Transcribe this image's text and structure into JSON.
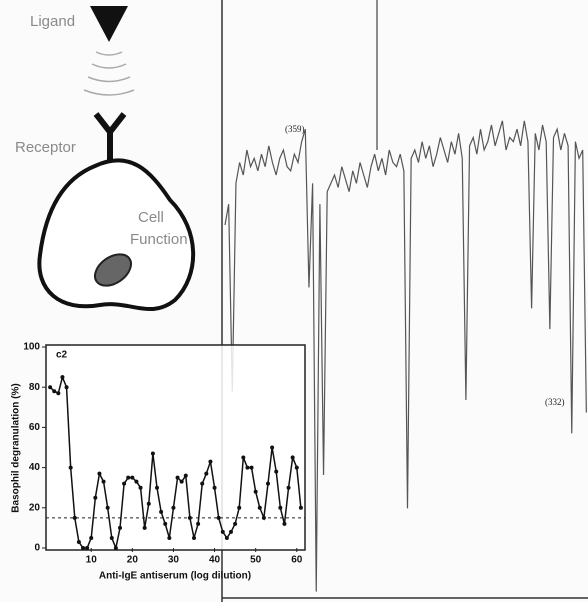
{
  "diagram": {
    "ligand": "Ligand",
    "receptor": "Receptor",
    "cell_function": [
      "Cell",
      "Function"
    ]
  },
  "chart_data": [
    {
      "type": "line",
      "panel_label": "c2",
      "x_label": "Anti-IgE antiserum (log dilution)",
      "y_label": "Basophil degranulation (%)",
      "x": [
        0,
        1,
        2,
        3,
        4,
        5,
        6,
        7,
        8,
        9,
        10,
        11,
        12,
        13,
        14,
        15,
        16,
        17,
        18,
        19,
        20,
        21,
        22,
        23,
        24,
        25,
        26,
        27,
        28,
        29,
        30,
        31,
        32,
        33,
        34,
        35,
        36,
        37,
        38,
        39,
        40,
        41,
        42,
        43,
        44,
        45,
        46,
        47,
        48,
        49,
        50,
        51,
        52,
        53,
        54,
        55,
        56,
        57,
        58,
        59,
        60,
        61
      ],
      "values": [
        80,
        78,
        77,
        85,
        80,
        40,
        15,
        3,
        0,
        0,
        5,
        25,
        37,
        33,
        20,
        5,
        0,
        10,
        32,
        35,
        35,
        33,
        30,
        10,
        22,
        47,
        30,
        18,
        12,
        5,
        20,
        35,
        33,
        36,
        15,
        5,
        12,
        32,
        37,
        43,
        30,
        15,
        8,
        5,
        8,
        12,
        20,
        45,
        40,
        40,
        28,
        20,
        15,
        32,
        50,
        38,
        20,
        12,
        30,
        45,
        40,
        20
      ],
      "color": "#111",
      "reference_line": 15,
      "xlim": [
        -1,
        62
      ],
      "ylim": [
        0,
        100
      ],
      "xticks": [
        10,
        20,
        30,
        40,
        50,
        60
      ],
      "yticks": [
        0,
        20,
        40,
        60,
        80,
        100
      ]
    },
    {
      "type": "line",
      "color": "#555",
      "ylim": [
        -20,
        100
      ],
      "annotations": [
        "(359)",
        "(332)"
      ],
      "values": [
        70,
        75,
        30,
        80,
        85,
        82,
        88,
        84,
        86,
        83,
        87,
        84,
        89,
        85,
        82,
        86,
        88,
        84,
        83,
        87,
        85,
        90,
        93,
        55,
        80,
        -18,
        75,
        10,
        78,
        80,
        82,
        79,
        84,
        81,
        78,
        83,
        80,
        85,
        82,
        79,
        84,
        87,
        83,
        86,
        82,
        88,
        85,
        84,
        87,
        83,
        2,
        86,
        88,
        85,
        90,
        86,
        89,
        84,
        87,
        91,
        88,
        85,
        90,
        87,
        92,
        86,
        28,
        89,
        91,
        87,
        93,
        88,
        90,
        94,
        89,
        92,
        95,
        88,
        91,
        90,
        93,
        89,
        95,
        90,
        50,
        92,
        88,
        94,
        90,
        45,
        91,
        93,
        88,
        92,
        89,
        20,
        90,
        86,
        88,
        25
      ]
    }
  ]
}
